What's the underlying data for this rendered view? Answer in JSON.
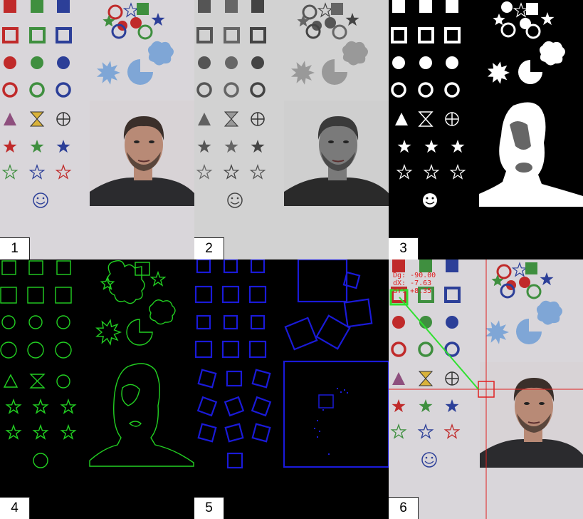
{
  "panels": [
    {
      "id": 1,
      "label": "1",
      "variant": "color"
    },
    {
      "id": 2,
      "label": "2",
      "variant": "gray"
    },
    {
      "id": 3,
      "label": "3",
      "variant": "binary"
    },
    {
      "id": 4,
      "label": "4",
      "variant": "contours"
    },
    {
      "id": 5,
      "label": "5",
      "variant": "boxes"
    },
    {
      "id": 6,
      "label": "6",
      "variant": "tracking"
    }
  ],
  "tracking_readout": {
    "line1": "Dg: -90.00",
    "line2": "dX: -7.63",
    "line3": "dY: +8.35"
  },
  "colors": {
    "paper": "#d9d6da",
    "red": "#c02a2a",
    "green": "#3f8f3f",
    "blue": "#2c3f98",
    "purple": "#8e4f7e",
    "yellow": "#d9b23a",
    "light_blue": "#7fa6d6",
    "contour_green": "#22d022",
    "box_blue": "#1a1ad8",
    "track_red": "#e02020",
    "track_green": "#30e030"
  }
}
